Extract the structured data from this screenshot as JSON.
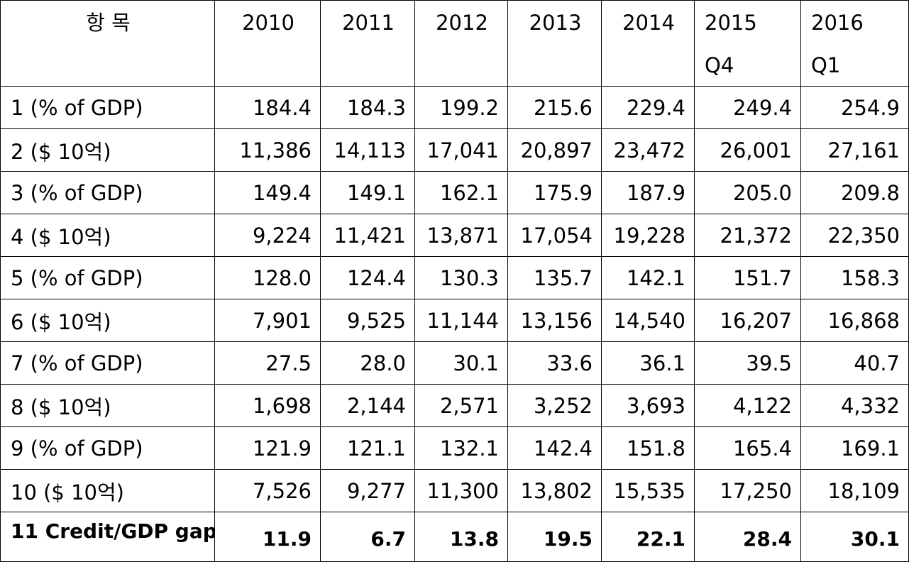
{
  "table": {
    "header": {
      "item": "항 목",
      "years": [
        {
          "lines": [
            "2010"
          ]
        },
        {
          "lines": [
            "2011"
          ]
        },
        {
          "lines": [
            "2012"
          ]
        },
        {
          "lines": [
            "2013"
          ]
        },
        {
          "lines": [
            "2014"
          ]
        },
        {
          "lines": [
            "2015",
            "Q4"
          ]
        },
        {
          "lines": [
            "2016",
            "Q1"
          ]
        }
      ]
    },
    "rows": [
      {
        "label": "1 (% of GDP)",
        "values": [
          "184.4",
          "184.3",
          "199.2",
          "215.6",
          "229.4",
          "249.4",
          "254.9"
        ]
      },
      {
        "label": "2 ($ 10억)",
        "values": [
          "11,386",
          "14,113",
          "17,041",
          "20,897",
          "23,472",
          "26,001",
          "27,161"
        ]
      },
      {
        "label": "3 (% of GDP)",
        "values": [
          "149.4",
          "149.1",
          "162.1",
          "175.9",
          "187.9",
          "205.0",
          "209.8"
        ]
      },
      {
        "label": "4 ($ 10억)",
        "values": [
          "9,224",
          "11,421",
          "13,871",
          "17,054",
          "19,228",
          "21,372",
          "22,350"
        ]
      },
      {
        "label": "5 (% of GDP)",
        "values": [
          "128.0",
          "124.4",
          "130.3",
          "135.7",
          "142.1",
          "151.7",
          "158.3"
        ]
      },
      {
        "label": "6 ($ 10억)",
        "values": [
          "7,901",
          "9,525",
          "11,144",
          "13,156",
          "14,540",
          "16,207",
          "16,868"
        ]
      },
      {
        "label": "7 (% of GDP)",
        "values": [
          "27.5",
          "28.0",
          "30.1",
          "33.6",
          "36.1",
          "39.5",
          "40.7"
        ]
      },
      {
        "label": "8 ($ 10억)",
        "values": [
          "1,698",
          "2,144",
          "2,571",
          "3,252",
          "3,693",
          "4,122",
          "4,332"
        ]
      },
      {
        "label": "9 (% of GDP)",
        "values": [
          "121.9",
          "121.1",
          "132.1",
          "142.4",
          "151.8",
          "165.4",
          "169.1"
        ]
      },
      {
        "label": "10 ($ 10억)",
        "values": [
          "7,526",
          "9,277",
          "11,300",
          "13,802",
          "15,535",
          "17,250",
          "18,109"
        ]
      },
      {
        "label": "11 Credit/GDP gap",
        "values": [
          "11.9",
          "6.7",
          "13.8",
          "19.5",
          "22.1",
          "28.4",
          "30.1"
        ],
        "bold": true
      }
    ]
  }
}
